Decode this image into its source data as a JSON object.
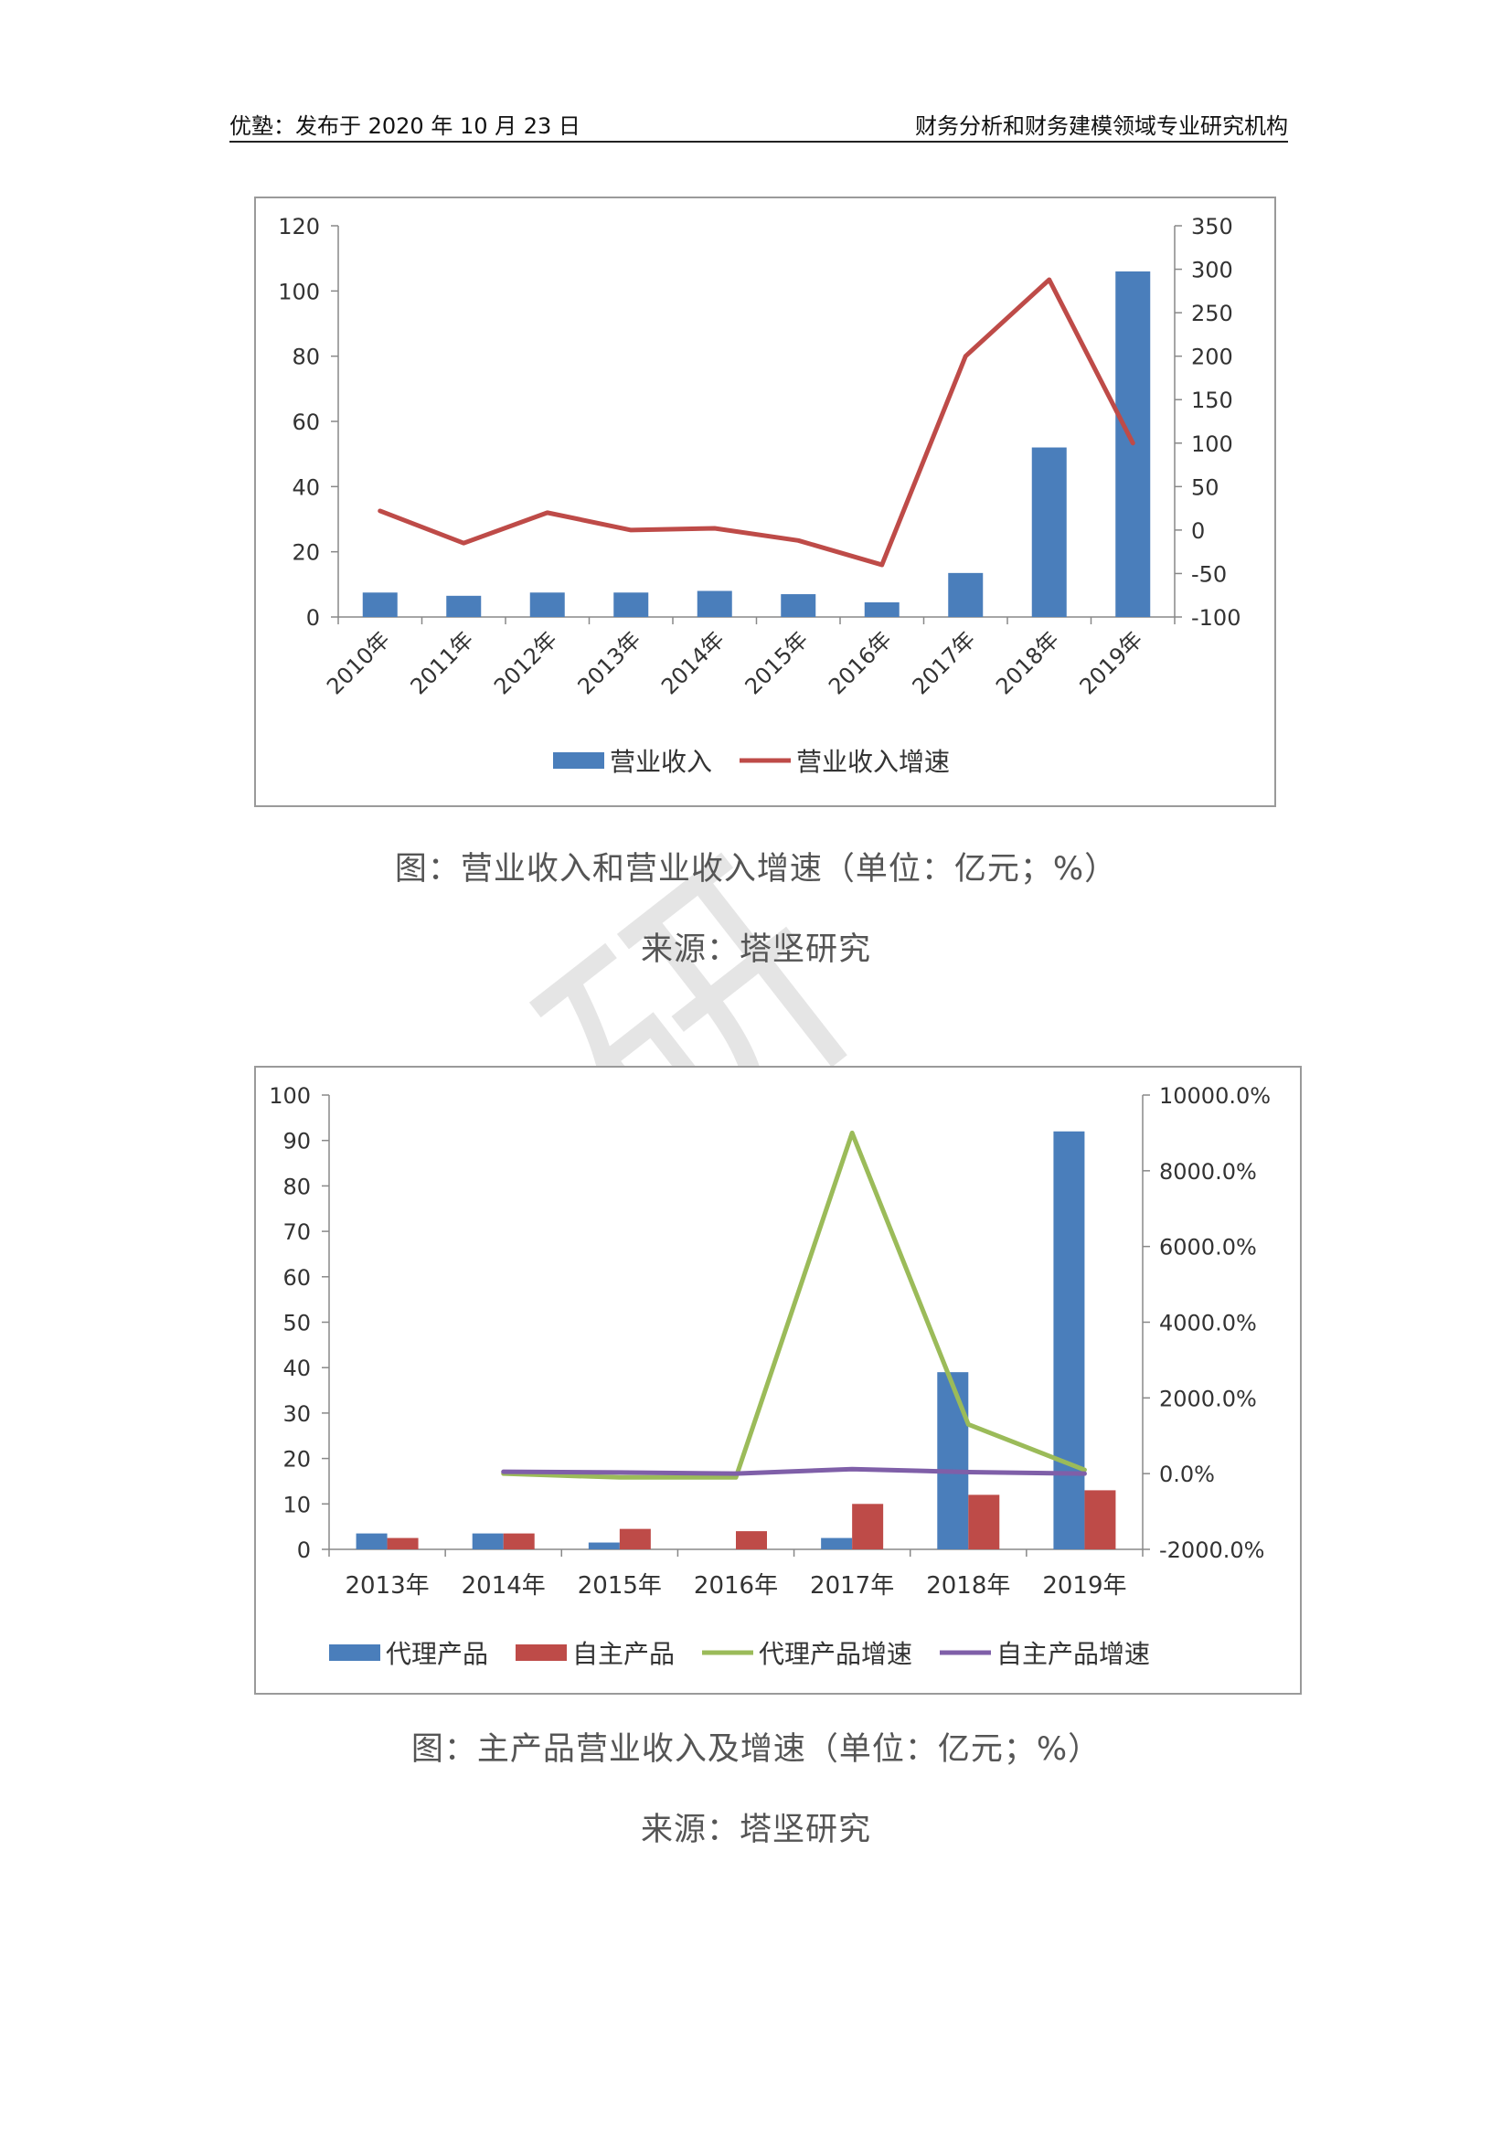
{
  "header": {
    "left": "优塾：发布于 2020 年 10 月 23 日",
    "right": "财务分析和财务建模领域专业研究机构"
  },
  "watermark": "研",
  "figure1": {
    "caption": "图：营业收入和营业收入增速（单位：亿元；%）",
    "source": "来源：塔坚研究"
  },
  "figure2": {
    "caption": "图：主产品营业收入及增速（单位：亿元；%）",
    "source": "来源：塔坚研究"
  },
  "chart_data": [
    {
      "type": "bar",
      "title": "",
      "categories": [
        "2010年",
        "2011年",
        "2012年",
        "2013年",
        "2014年",
        "2015年",
        "2016年",
        "2017年",
        "2018年",
        "2019年"
      ],
      "y_left": {
        "min": 0,
        "max": 120,
        "ticks": [
          "0",
          "20",
          "40",
          "60",
          "80",
          "100",
          "120"
        ]
      },
      "y_right": {
        "min": -100,
        "max": 350,
        "ticks": [
          "-100",
          "-50",
          "0",
          "50",
          "100",
          "150",
          "200",
          "250",
          "300",
          "350"
        ]
      },
      "series": [
        {
          "name": "营业收入",
          "type": "bar",
          "axis": "left",
          "color": "#4a7ebb",
          "values": [
            7.5,
            6.5,
            7.5,
            7.5,
            8,
            7,
            4.5,
            13.5,
            52,
            106
          ]
        },
        {
          "name": "营业收入增速",
          "type": "line",
          "axis": "right",
          "color": "#be4b48",
          "values": [
            22,
            -15,
            20,
            0,
            2,
            -12,
            -40,
            200,
            288,
            100
          ]
        }
      ],
      "legend_position": "bottom",
      "grid": false
    },
    {
      "type": "bar",
      "title": "",
      "categories": [
        "2013年",
        "2014年",
        "2015年",
        "2016年",
        "2017年",
        "2018年",
        "2019年"
      ],
      "y_left": {
        "min": 0,
        "max": 100,
        "ticks": [
          "0",
          "10",
          "20",
          "30",
          "40",
          "50",
          "60",
          "70",
          "80",
          "90",
          "100"
        ]
      },
      "y_right": {
        "min": -2000,
        "max": 10000,
        "ticks": [
          "-2000.0%",
          "0.0%",
          "2000.0%",
          "4000.0%",
          "6000.0%",
          "8000.0%",
          "10000.0%"
        ]
      },
      "series": [
        {
          "name": "代理产品",
          "type": "bar",
          "axis": "left",
          "color": "#4a7ebb",
          "values": [
            3.5,
            3.5,
            1.5,
            0,
            2.5,
            39,
            92
          ]
        },
        {
          "name": "自主产品",
          "type": "bar",
          "axis": "left",
          "color": "#be4b48",
          "values": [
            2.5,
            3.5,
            4.5,
            4,
            10,
            12,
            13
          ]
        },
        {
          "name": "代理产品增速",
          "type": "line",
          "axis": "right",
          "color": "#9bbb59",
          "values": [
            null,
            0,
            -100,
            -100,
            9000,
            1300,
            100
          ]
        },
        {
          "name": "自主产品增速",
          "type": "line",
          "axis": "right",
          "color": "#7f5fa8",
          "values": [
            null,
            50,
            30,
            0,
            120,
            40,
            0
          ]
        }
      ],
      "legend_position": "bottom",
      "grid": false
    }
  ]
}
